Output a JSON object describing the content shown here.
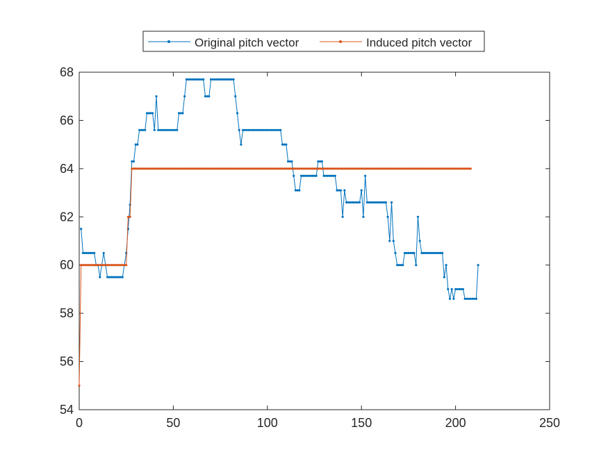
{
  "chart_data": {
    "type": "line",
    "title": "",
    "xlabel": "",
    "ylabel": "",
    "xlim": [
      0,
      250
    ],
    "ylim": [
      54,
      68
    ],
    "x_ticks": [
      0,
      50,
      100,
      150,
      200,
      250
    ],
    "y_ticks": [
      54,
      56,
      58,
      60,
      62,
      64,
      66,
      68
    ],
    "grid": false,
    "legend_position": "top-center",
    "series": [
      {
        "name": "Original pitch vector",
        "color": "#0072BD",
        "marker": "dot",
        "points": [
          [
            1,
            61.5
          ],
          [
            2,
            60.5
          ],
          [
            8,
            60.5
          ],
          [
            9,
            60
          ],
          [
            10,
            60
          ],
          [
            11,
            59.5
          ],
          [
            12,
            60
          ],
          [
            13,
            60.5
          ],
          [
            14,
            60
          ],
          [
            15,
            59.5
          ],
          [
            23,
            59.5
          ],
          [
            24,
            60
          ],
          [
            25,
            60.5
          ],
          [
            26,
            61.5
          ],
          [
            27,
            62.5
          ],
          [
            28,
            64.3
          ],
          [
            29,
            64.3
          ],
          [
            30,
            65
          ],
          [
            31,
            65
          ],
          [
            32,
            65.6
          ],
          [
            35,
            65.6
          ],
          [
            36,
            66.3
          ],
          [
            39,
            66.3
          ],
          [
            40,
            65.6
          ],
          [
            41,
            67
          ],
          [
            42,
            65.6
          ],
          [
            52,
            65.6
          ],
          [
            53,
            66.3
          ],
          [
            55,
            66.3
          ],
          [
            56,
            67
          ],
          [
            57,
            67.7
          ],
          [
            66,
            67.7
          ],
          [
            67,
            67
          ],
          [
            69,
            67
          ],
          [
            70,
            67.7
          ],
          [
            82,
            67.7
          ],
          [
            83,
            67
          ],
          [
            84,
            66.3
          ],
          [
            85,
            65.6
          ],
          [
            86,
            65
          ],
          [
            87,
            65.6
          ],
          [
            107,
            65.6
          ],
          [
            108,
            65
          ],
          [
            110,
            65
          ],
          [
            111,
            64.3
          ],
          [
            113,
            64.3
          ],
          [
            114,
            63.7
          ],
          [
            115,
            63.1
          ],
          [
            117,
            63.1
          ],
          [
            118,
            63.7
          ],
          [
            126,
            63.7
          ],
          [
            127,
            64.3
          ],
          [
            129,
            64.3
          ],
          [
            130,
            63.7
          ],
          [
            136,
            63.7
          ],
          [
            137,
            63.1
          ],
          [
            139,
            63.1
          ],
          [
            140,
            62
          ],
          [
            141,
            63.1
          ],
          [
            142,
            62.6
          ],
          [
            149,
            62.6
          ],
          [
            150,
            63.1
          ],
          [
            151,
            62
          ],
          [
            152,
            63.7
          ],
          [
            153,
            62.6
          ],
          [
            163,
            62.6
          ],
          [
            164,
            62
          ],
          [
            165,
            61
          ],
          [
            166,
            62.6
          ],
          [
            167,
            61
          ],
          [
            168,
            60.5
          ],
          [
            169,
            60
          ],
          [
            172,
            60
          ],
          [
            173,
            60.5
          ],
          [
            178,
            60.5
          ],
          [
            179,
            60
          ],
          [
            180,
            62
          ],
          [
            181,
            61
          ],
          [
            182,
            60.5
          ],
          [
            193,
            60.5
          ],
          [
            194,
            59.5
          ],
          [
            195,
            60
          ],
          [
            196,
            59
          ],
          [
            197,
            58.6
          ],
          [
            198,
            59
          ],
          [
            199,
            58.6
          ],
          [
            200,
            59
          ],
          [
            204,
            59
          ],
          [
            205,
            58.6
          ],
          [
            211,
            58.6
          ],
          [
            212,
            60
          ]
        ]
      },
      {
        "name": "Induced pitch vector",
        "color": "#D95319",
        "marker": "dot",
        "points": [
          [
            0,
            55
          ],
          [
            1,
            60
          ],
          [
            25,
            60
          ],
          [
            26,
            62
          ],
          [
            27,
            62
          ],
          [
            28,
            64
          ],
          [
            208,
            64
          ]
        ]
      }
    ]
  }
}
